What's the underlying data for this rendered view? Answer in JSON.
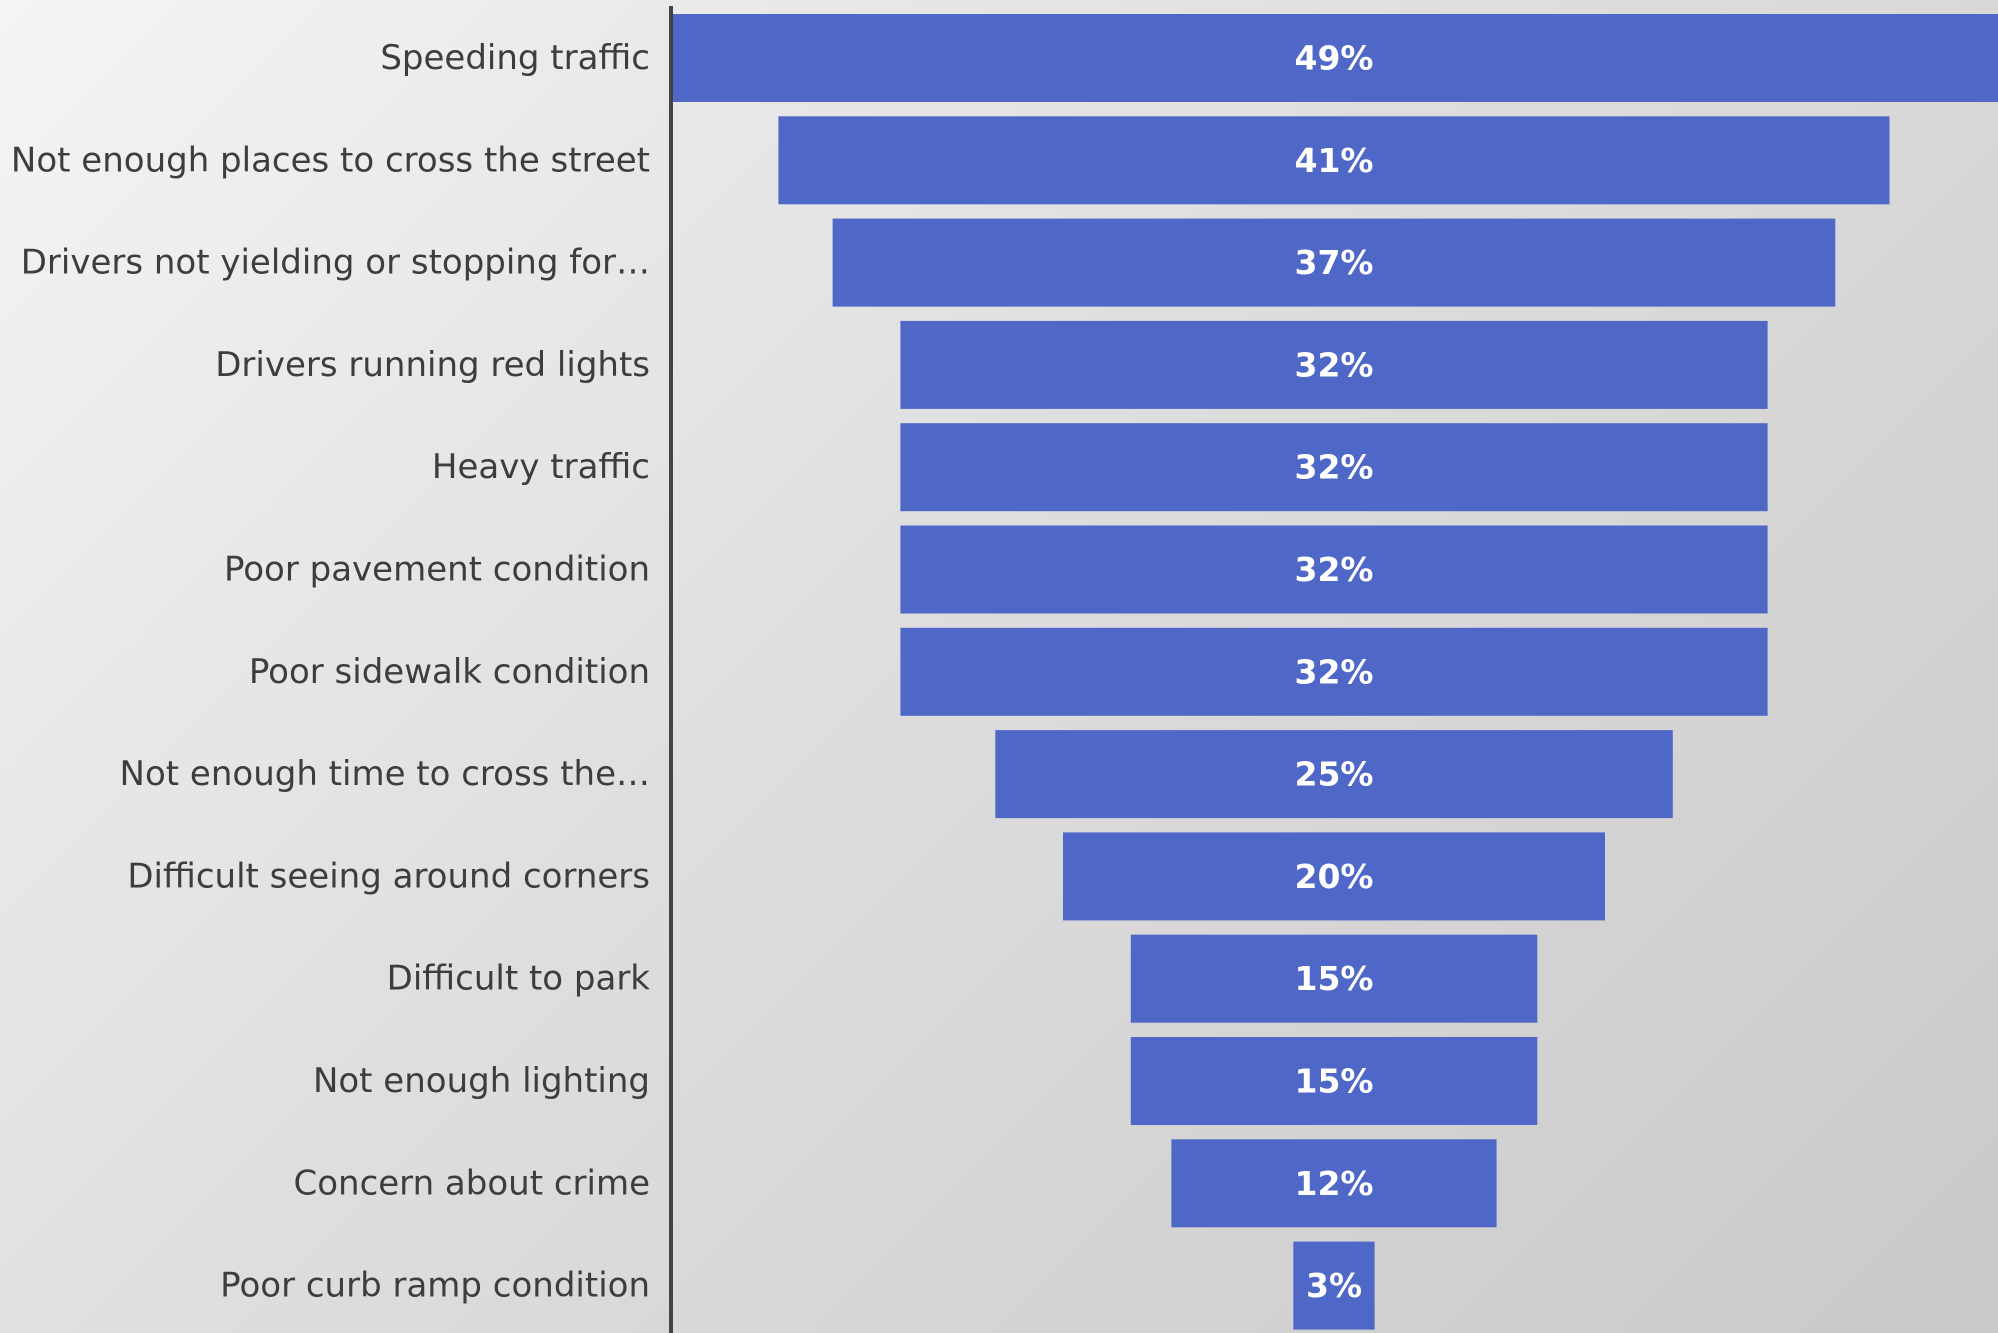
{
  "chart_data": {
    "type": "bar",
    "orientation": "horizontal",
    "style": "funnel-centered",
    "categories": [
      "Speeding traffic",
      "Not enough places to cross the street",
      "Drivers not yielding or stopping for…",
      "Drivers running red lights",
      "Heavy traffic",
      "Poor pavement condition",
      "Poor sidewalk condition",
      "Not enough time to cross the…",
      "Difficult seeing around corners",
      "Difficult to park",
      "Not enough lighting",
      "Concern about crime",
      "Poor curb ramp condition"
    ],
    "values": [
      49,
      41,
      37,
      32,
      32,
      32,
      32,
      25,
      20,
      15,
      15,
      12,
      3
    ],
    "value_labels": [
      "49%",
      "41%",
      "37%",
      "32%",
      "32%",
      "32%",
      "32%",
      "25%",
      "20%",
      "15%",
      "15%",
      "12%",
      "3%"
    ],
    "unit": "%",
    "title": "",
    "xlabel": "",
    "ylabel": "",
    "grid": false,
    "legend": "none",
    "colors": {
      "bar": "#4f67c7",
      "axis": "#444444",
      "category_text": "#3d3d3d",
      "value_text": "#ffffff"
    }
  }
}
